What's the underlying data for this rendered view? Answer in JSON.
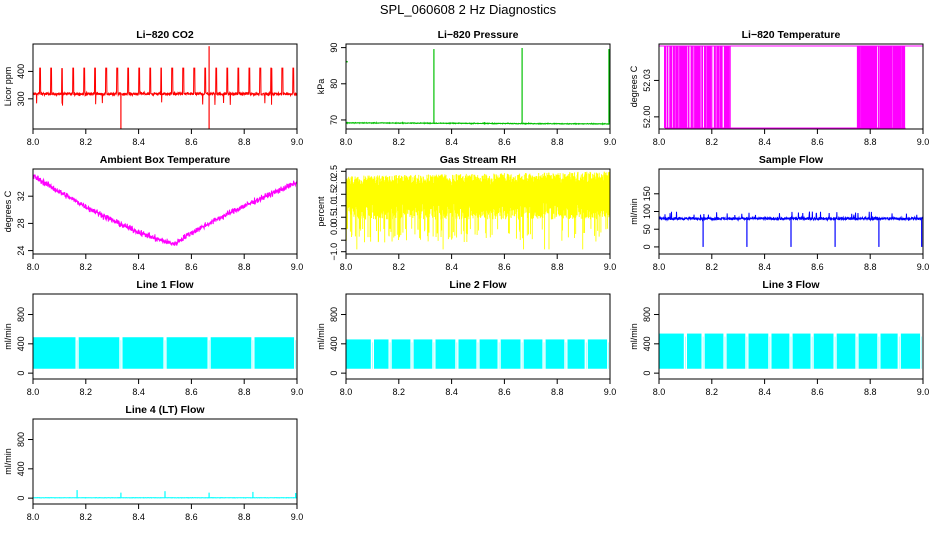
{
  "page_title": "SPL_060608  2 Hz Diagnostics",
  "chart_data": [
    {
      "id": "p1",
      "type": "line",
      "title": "Li−820 CO2",
      "ylabel": "Licor ppm",
      "color": "#ff0000",
      "xlim": [
        8.0,
        9.0
      ],
      "ylim": [
        190,
        500
      ],
      "xticks": [
        8.0,
        8.2,
        8.4,
        8.6,
        8.8,
        9.0
      ],
      "xticklabels": [
        "8.0",
        "8.2",
        "8.4",
        "8.6",
        "8.8",
        "9.0"
      ],
      "yticks": [
        300,
        400
      ],
      "yticklabels": [
        "300",
        "400"
      ],
      "pattern": "spikes",
      "base": 318,
      "noise": 8,
      "period": 0.0417,
      "spike_to": 412,
      "spike_width": 0.004,
      "events": [
        {
          "x": 8.333,
          "to": 185,
          "width": 0.003
        },
        {
          "x": 8.667,
          "to": 492,
          "width": 0.004
        },
        {
          "x": 8.667,
          "to": 190,
          "width": 0.004
        }
      ]
    },
    {
      "id": "p2",
      "type": "line",
      "title": "Li−820 Pressure",
      "ylabel": "kPa",
      "color": "#00c000",
      "xlim": [
        8.0,
        9.0
      ],
      "ylim": [
        67.5,
        91
      ],
      "xticks": [
        8.0,
        8.2,
        8.4,
        8.6,
        8.8,
        9.0
      ],
      "xticklabels": [
        "8.0",
        "8.2",
        "8.4",
        "8.6",
        "8.8",
        "9.0"
      ],
      "yticks": [
        70,
        80,
        90
      ],
      "yticklabels": [
        "70",
        "80",
        "90"
      ],
      "pattern": "flat_events",
      "base": 69.2,
      "slope": -0.3,
      "noise": 0.15,
      "events": [
        {
          "x": 8.333,
          "to": 89.6,
          "width": 0.004
        },
        {
          "x": 8.667,
          "to": 89.9,
          "width": 0.004
        },
        {
          "x": 8.996,
          "to": 89.6,
          "width": 0.003
        }
      ],
      "outlier": {
        "x": 8.0,
        "y": 86.1
      }
    },
    {
      "id": "p3",
      "type": "line",
      "title": "Li−820 Temperature",
      "ylabel": "degrees C",
      "color": "#ff00ff",
      "xlim": [
        8.0,
        9.0
      ],
      "ylim": [
        51.99,
        52.06
      ],
      "xticks": [
        8.0,
        8.2,
        8.4,
        8.6,
        8.8,
        9.0
      ],
      "xticklabels": [
        "8.0",
        "8.2",
        "8.4",
        "8.6",
        "8.8",
        "9.0"
      ],
      "yticks": [
        52.0,
        52.03
      ],
      "yticklabels": [
        "52.00",
        "52.03"
      ],
      "pattern": "quantized",
      "levels": [
        51.99,
        52.06
      ],
      "segments": [
        {
          "from": 8.0,
          "to": 8.02,
          "p_high": 1.0
        },
        {
          "from": 8.02,
          "to": 8.12,
          "p_high": 0.7
        },
        {
          "from": 8.12,
          "to": 8.27,
          "p_high": 0.3
        },
        {
          "from": 8.27,
          "to": 8.75,
          "p_high": 0.0
        },
        {
          "from": 8.75,
          "to": 8.93,
          "p_high": 0.4
        },
        {
          "from": 8.93,
          "to": 9.0,
          "p_high": 1.0
        }
      ]
    },
    {
      "id": "p4",
      "type": "line",
      "title": "Ambient Box Temperature",
      "ylabel": "degrees C",
      "color": "#ff00ff",
      "xlim": [
        8.0,
        9.0
      ],
      "ylim": [
        23.5,
        36
      ],
      "xticks": [
        8.0,
        8.2,
        8.4,
        8.6,
        8.8,
        9.0
      ],
      "xticklabels": [
        "8.0",
        "8.2",
        "8.4",
        "8.6",
        "8.8",
        "9.0"
      ],
      "yticks": [
        24,
        28,
        32
      ],
      "yticklabels": [
        "24",
        "28",
        "32"
      ],
      "pattern": "vshape",
      "start": 35.0,
      "min_x": 8.54,
      "min_y": 25.0,
      "end": 34.0,
      "noise": 1.3
    },
    {
      "id": "p5",
      "type": "line",
      "title": "Gas Stream RH",
      "ylabel": "percent",
      "color": "#ffff00",
      "xlim": [
        8.0,
        9.0
      ],
      "ylim": [
        -1.1,
        2.6
      ],
      "xticks": [
        8.0,
        8.2,
        8.4,
        8.6,
        8.8,
        9.0
      ],
      "xticklabels": [
        "8.0",
        "8.2",
        "8.4",
        "8.6",
        "8.8",
        "9.0"
      ],
      "yticks": [
        -1.0,
        -0.5,
        0.0,
        0.5,
        1.0,
        1.5,
        2.0,
        2.5
      ],
      "yticklabels": [
        "−1.0",
        "",
        "0.0",
        "0.5",
        "1.0",
        "1.5",
        "2.0",
        "2.5"
      ],
      "pattern": "band",
      "lo": 0.0,
      "hi": 2.3,
      "slope_hi": 0.2,
      "dip_to": -0.9
    },
    {
      "id": "p6",
      "type": "line",
      "title": "Sample Flow",
      "ylabel": "ml/min",
      "color": "#0000ff",
      "xlim": [
        8.0,
        9.0
      ],
      "ylim": [
        -20,
        220
      ],
      "xticks": [
        8.0,
        8.2,
        8.4,
        8.6,
        8.8,
        9.0
      ],
      "xticklabels": [
        "8.0",
        "8.2",
        "8.4",
        "8.6",
        "8.8",
        "9.0"
      ],
      "yticks": [
        0,
        50,
        100,
        150
      ],
      "yticklabels": [
        "0",
        "50",
        "100",
        "150"
      ],
      "pattern": "flat_events",
      "base": 80,
      "slope": 0,
      "noise": 6,
      "spikes_up": 20,
      "events": [
        {
          "x": 8.167,
          "to": 0,
          "width": 0.004
        },
        {
          "x": 8.333,
          "to": 0,
          "width": 0.004
        },
        {
          "x": 8.5,
          "to": 0,
          "width": 0.004
        },
        {
          "x": 8.667,
          "to": 0,
          "width": 0.004
        },
        {
          "x": 8.833,
          "to": 0,
          "width": 0.004
        },
        {
          "x": 8.995,
          "to": 0,
          "width": 0.004
        }
      ]
    },
    {
      "id": "p7",
      "type": "line",
      "title": "Line 1 Flow",
      "ylabel": "ml/min",
      "color": "#00ffff",
      "xlim": [
        8.0,
        9.0
      ],
      "ylim": [
        -80,
        1080
      ],
      "xticks": [
        8.0,
        8.2,
        8.4,
        8.6,
        8.8,
        9.0
      ],
      "xticklabels": [
        "8.0",
        "8.2",
        "8.4",
        "8.6",
        "8.8",
        "9.0"
      ],
      "yticks": [
        0,
        400,
        800
      ],
      "yticklabels": [
        "0",
        "400",
        "800"
      ],
      "pattern": "block",
      "lo": 60,
      "hi": 490,
      "gaps": [
        8.167,
        8.333,
        8.5,
        8.667,
        8.833,
        8.995
      ]
    },
    {
      "id": "p8",
      "type": "line",
      "title": "Line 2 Flow",
      "ylabel": "ml/min",
      "color": "#00ffff",
      "xlim": [
        8.0,
        9.0
      ],
      "ylim": [
        -80,
        1080
      ],
      "xticks": [
        8.0,
        8.2,
        8.4,
        8.6,
        8.8,
        9.0
      ],
      "xticklabels": [
        "8.0",
        "8.2",
        "8.4",
        "8.6",
        "8.8",
        "9.0"
      ],
      "yticks": [
        0,
        400,
        800
      ],
      "yticklabels": [
        "0",
        "400",
        "800"
      ],
      "pattern": "block",
      "lo": 60,
      "hi": 460,
      "gaps": [
        8.1,
        8.167,
        8.25,
        8.333,
        8.42,
        8.5,
        8.58,
        8.667,
        8.75,
        8.833,
        8.91,
        8.995
      ]
    },
    {
      "id": "p9",
      "type": "line",
      "title": "Line 3 Flow",
      "ylabel": "ml/min",
      "color": "#00ffff",
      "xlim": [
        8.0,
        9.0
      ],
      "ylim": [
        -80,
        1080
      ],
      "xticks": [
        8.0,
        8.2,
        8.4,
        8.6,
        8.8,
        9.0
      ],
      "xticklabels": [
        "8.0",
        "8.2",
        "8.4",
        "8.6",
        "8.8",
        "9.0"
      ],
      "yticks": [
        0,
        400,
        800
      ],
      "yticklabels": [
        "0",
        "400",
        "800"
      ],
      "pattern": "block",
      "lo": 60,
      "hi": 540,
      "gaps": [
        8.1,
        8.167,
        8.25,
        8.333,
        8.42,
        8.5,
        8.58,
        8.667,
        8.75,
        8.833,
        8.91,
        8.995
      ]
    },
    {
      "id": "p10",
      "type": "line",
      "title": "Line 4 (LT) Flow",
      "ylabel": "ml/min",
      "color": "#00ffff",
      "xlim": [
        8.0,
        9.0
      ],
      "ylim": [
        -80,
        1080
      ],
      "xticks": [
        8.0,
        8.2,
        8.4,
        8.6,
        8.8,
        9.0
      ],
      "xticklabels": [
        "8.0",
        "8.2",
        "8.4",
        "8.6",
        "8.8",
        "9.0"
      ],
      "yticks": [
        0,
        400,
        800
      ],
      "yticklabels": [
        "0",
        "400",
        "800"
      ],
      "pattern": "flat_events",
      "base": 5,
      "slope": 0,
      "noise": 3,
      "events": [
        {
          "x": 8.167,
          "to": 110,
          "width": 0.004
        },
        {
          "x": 8.333,
          "to": 75,
          "width": 0.004
        },
        {
          "x": 8.5,
          "to": 95,
          "width": 0.004
        },
        {
          "x": 8.667,
          "to": 75,
          "width": 0.004
        },
        {
          "x": 8.833,
          "to": 85,
          "width": 0.004
        },
        {
          "x": 8.995,
          "to": 70,
          "width": 0.004
        }
      ]
    }
  ]
}
